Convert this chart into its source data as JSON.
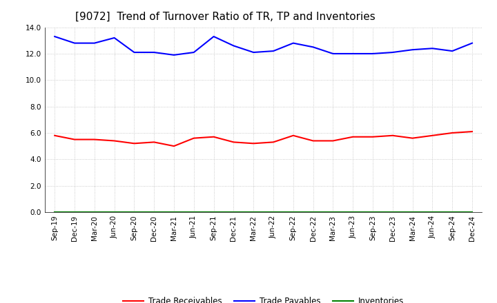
{
  "title": "[9072]  Trend of Turnover Ratio of TR, TP and Inventories",
  "x_labels": [
    "Sep-19",
    "Dec-19",
    "Mar-20",
    "Jun-20",
    "Sep-20",
    "Dec-20",
    "Mar-21",
    "Jun-21",
    "Sep-21",
    "Dec-21",
    "Mar-22",
    "Jun-22",
    "Sep-22",
    "Dec-22",
    "Mar-23",
    "Jun-23",
    "Sep-23",
    "Dec-23",
    "Mar-24",
    "Jun-24",
    "Sep-24",
    "Dec-24"
  ],
  "trade_receivables": [
    5.8,
    5.5,
    5.5,
    5.4,
    5.2,
    5.3,
    5.0,
    5.6,
    5.7,
    5.3,
    5.2,
    5.3,
    5.8,
    5.4,
    5.4,
    5.7,
    5.7,
    5.8,
    5.6,
    5.8,
    6.0,
    6.1
  ],
  "trade_payables": [
    13.3,
    12.8,
    12.8,
    13.2,
    12.1,
    12.1,
    11.9,
    12.1,
    13.3,
    12.6,
    12.1,
    12.2,
    12.8,
    12.5,
    12.0,
    12.0,
    12.0,
    12.1,
    12.3,
    12.4,
    12.2,
    12.8
  ],
  "inventories": [
    0.0,
    0.0,
    0.0,
    0.0,
    0.0,
    0.0,
    0.0,
    0.0,
    0.0,
    0.0,
    0.0,
    0.0,
    0.0,
    0.0,
    0.0,
    0.0,
    0.0,
    0.0,
    0.0,
    0.0,
    0.0,
    0.0
  ],
  "tr_color": "#ff0000",
  "tp_color": "#0000ff",
  "inv_color": "#008000",
  "ylim": [
    0,
    14.0
  ],
  "yticks": [
    0.0,
    2.0,
    4.0,
    6.0,
    8.0,
    10.0,
    12.0,
    14.0
  ],
  "background_color": "#ffffff",
  "grid_color": "#bbbbbb",
  "title_fontsize": 11,
  "tick_fontsize": 7.5,
  "legend_labels": [
    "Trade Receivables",
    "Trade Payables",
    "Inventories"
  ]
}
